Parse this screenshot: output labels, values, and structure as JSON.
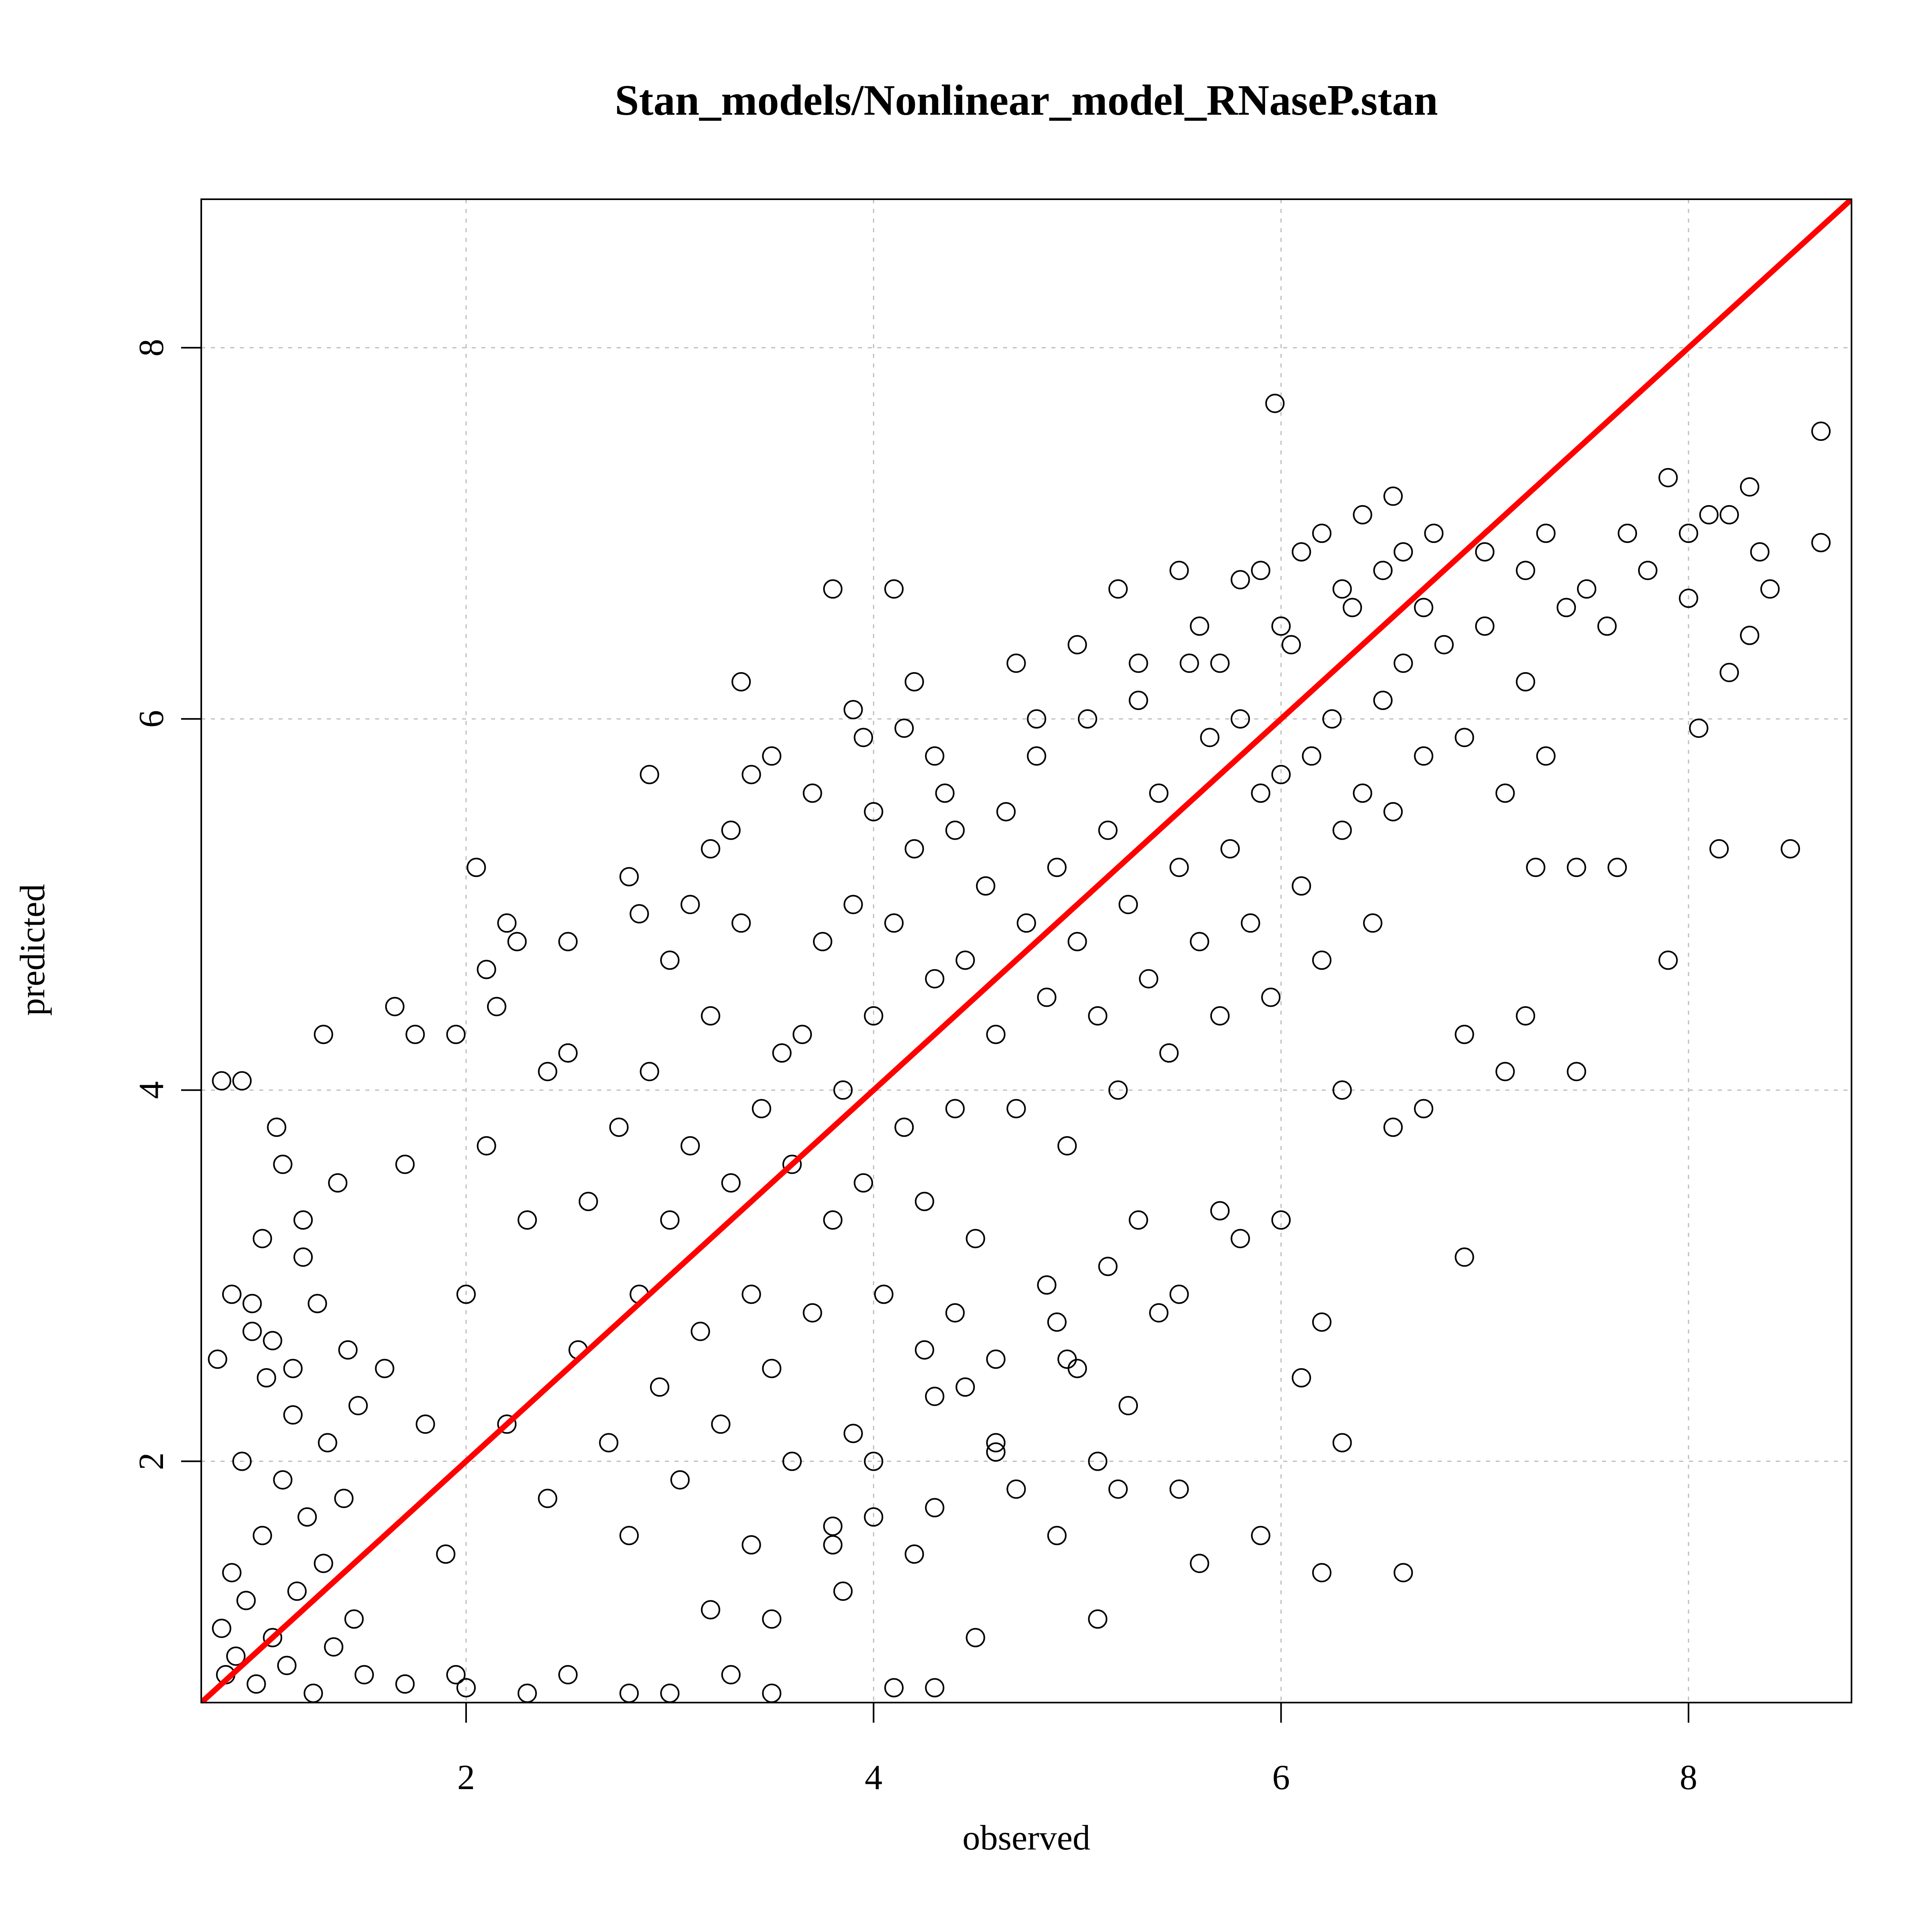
{
  "chart_data": {
    "type": "scatter",
    "title": "Stan_models/Nonlinear_model_RNaseP.stan",
    "xlabel": "observed",
    "ylabel": "predicted",
    "xlim": [
      0.7,
      8.8
    ],
    "ylim": [
      0.7,
      8.8
    ],
    "xticks": [
      2,
      4,
      6,
      8
    ],
    "yticks": [
      2,
      4,
      6,
      8
    ],
    "xtick_labels": [
      "2",
      "4",
      "6",
      "8"
    ],
    "ytick_labels": [
      "2",
      "4",
      "6",
      "8"
    ],
    "grid": true,
    "legend": "none",
    "marker": "open-circle",
    "point_color": "#000000",
    "grid_color": "#bebebe",
    "reference_line": {
      "x": [
        0.7,
        8.8
      ],
      "y": [
        0.7,
        8.8
      ],
      "color": "#ff0000"
    },
    "series": [
      {
        "points": [
          [
            0.78,
            2.55
          ],
          [
            0.8,
            1.1
          ],
          [
            0.82,
            0.85
          ],
          [
            0.85,
            1.4
          ],
          [
            0.87,
            0.95
          ],
          [
            0.9,
            2.0
          ],
          [
            0.92,
            1.25
          ],
          [
            0.95,
            2.7
          ],
          [
            0.97,
            0.8
          ],
          [
            1.0,
            1.6
          ],
          [
            1.02,
            2.45
          ],
          [
            1.05,
            1.05
          ],
          [
            1.07,
            3.8
          ],
          [
            1.1,
            1.9
          ],
          [
            1.12,
            0.9
          ],
          [
            1.15,
            2.25
          ],
          [
            1.17,
            1.3
          ],
          [
            1.2,
            3.1
          ],
          [
            1.22,
            1.7
          ],
          [
            1.25,
            0.75
          ],
          [
            1.27,
            2.85
          ],
          [
            1.3,
            1.45
          ],
          [
            1.32,
            2.1
          ],
          [
            1.35,
            1.0
          ],
          [
            1.37,
            3.5
          ],
          [
            1.4,
            1.8
          ],
          [
            1.42,
            2.6
          ],
          [
            1.45,
            1.15
          ],
          [
            1.47,
            2.3
          ],
          [
            1.5,
            0.85
          ],
          [
            0.8,
            4.05
          ],
          [
            0.9,
            4.05
          ],
          [
            1.1,
            3.6
          ],
          [
            1.3,
            4.3
          ],
          [
            1.2,
            3.3
          ],
          [
            1.0,
            3.2
          ],
          [
            0.85,
            2.9
          ],
          [
            0.95,
            2.85
          ],
          [
            1.05,
            2.65
          ],
          [
            1.15,
            2.5
          ],
          [
            1.6,
            2.5
          ],
          [
            1.7,
            3.6
          ],
          [
            1.8,
            2.2
          ],
          [
            1.9,
            1.5
          ],
          [
            2.0,
            2.9
          ],
          [
            2.1,
            3.7
          ],
          [
            2.2,
            2.2
          ],
          [
            2.3,
            3.3
          ],
          [
            2.4,
            1.8
          ],
          [
            2.5,
            4.2
          ],
          [
            1.65,
            4.45
          ],
          [
            1.75,
            4.3
          ],
          [
            1.95,
            4.3
          ],
          [
            2.05,
            5.2
          ],
          [
            2.2,
            4.9
          ],
          [
            2.25,
            4.8
          ],
          [
            2.1,
            4.65
          ],
          [
            2.15,
            4.45
          ],
          [
            2.4,
            4.1
          ],
          [
            2.5,
            4.8
          ],
          [
            2.55,
            2.6
          ],
          [
            2.6,
            3.4
          ],
          [
            2.7,
            2.1
          ],
          [
            2.75,
            3.8
          ],
          [
            2.8,
            1.6
          ],
          [
            2.85,
            2.9
          ],
          [
            2.9,
            4.1
          ],
          [
            2.95,
            2.4
          ],
          [
            3.0,
            3.3
          ],
          [
            3.05,
            1.9
          ],
          [
            3.1,
            3.7
          ],
          [
            3.15,
            2.7
          ],
          [
            3.2,
            4.4
          ],
          [
            3.25,
            2.2
          ],
          [
            3.3,
            3.5
          ],
          [
            3.35,
            4.9
          ],
          [
            3.4,
            2.9
          ],
          [
            3.45,
            3.9
          ],
          [
            3.5,
            2.5
          ],
          [
            3.55,
            4.2
          ],
          [
            2.8,
            5.15
          ],
          [
            2.9,
            5.7
          ],
          [
            3.2,
            5.3
          ],
          [
            3.35,
            6.2
          ],
          [
            3.4,
            5.7
          ],
          [
            3.5,
            5.8
          ],
          [
            3.3,
            5.4
          ],
          [
            3.1,
            5.0
          ],
          [
            3.0,
            4.7
          ],
          [
            2.85,
            4.95
          ],
          [
            3.6,
            3.6
          ],
          [
            3.65,
            4.3
          ],
          [
            3.7,
            2.8
          ],
          [
            3.75,
            4.8
          ],
          [
            3.8,
            3.3
          ],
          [
            3.85,
            4.0
          ],
          [
            3.9,
            5.0
          ],
          [
            3.95,
            3.5
          ],
          [
            4.0,
            4.4
          ],
          [
            4.05,
            2.9
          ],
          [
            4.1,
            4.9
          ],
          [
            4.15,
            3.8
          ],
          [
            4.2,
            5.3
          ],
          [
            4.25,
            3.4
          ],
          [
            4.3,
            4.6
          ],
          [
            4.35,
            5.6
          ],
          [
            4.4,
            3.9
          ],
          [
            4.45,
            4.7
          ],
          [
            4.5,
            3.2
          ],
          [
            4.55,
            5.1
          ],
          [
            3.7,
            5.6
          ],
          [
            3.8,
            6.7
          ],
          [
            3.9,
            6.05
          ],
          [
            4.1,
            6.7
          ],
          [
            4.15,
            5.95
          ],
          [
            4.2,
            6.2
          ],
          [
            4.0,
            5.5
          ],
          [
            3.95,
            5.9
          ],
          [
            4.3,
            5.8
          ],
          [
            4.4,
            5.4
          ],
          [
            4.6,
            4.3
          ],
          [
            4.65,
            5.5
          ],
          [
            4.7,
            3.9
          ],
          [
            4.75,
            4.9
          ],
          [
            4.8,
            5.8
          ],
          [
            4.85,
            4.5
          ],
          [
            4.9,
            5.2
          ],
          [
            4.95,
            3.7
          ],
          [
            5.0,
            4.8
          ],
          [
            5.05,
            6.0
          ],
          [
            5.1,
            4.4
          ],
          [
            5.15,
            5.4
          ],
          [
            5.2,
            4.0
          ],
          [
            5.25,
            5.0
          ],
          [
            5.3,
            6.1
          ],
          [
            5.35,
            4.6
          ],
          [
            5.4,
            5.6
          ],
          [
            5.45,
            4.2
          ],
          [
            5.5,
            5.2
          ],
          [
            5.55,
            6.3
          ],
          [
            4.7,
            6.3
          ],
          [
            4.8,
            6.0
          ],
          [
            5.0,
            6.4
          ],
          [
            5.2,
            6.7
          ],
          [
            5.3,
            6.3
          ],
          [
            5.5,
            6.8
          ],
          [
            5.6,
            6.5
          ],
          [
            5.7,
            6.3
          ],
          [
            5.8,
            6.75
          ],
          [
            5.9,
            6.8
          ],
          [
            5.6,
            4.8
          ],
          [
            5.65,
            5.9
          ],
          [
            5.7,
            4.4
          ],
          [
            5.75,
            5.3
          ],
          [
            5.8,
            6.0
          ],
          [
            5.85,
            4.9
          ],
          [
            5.9,
            5.6
          ],
          [
            5.95,
            4.5
          ],
          [
            6.0,
            5.7
          ],
          [
            6.05,
            6.4
          ],
          [
            6.1,
            5.1
          ],
          [
            6.15,
            5.8
          ],
          [
            6.2,
            4.7
          ],
          [
            6.25,
            6.0
          ],
          [
            6.3,
            5.4
          ],
          [
            6.35,
            6.6
          ],
          [
            6.4,
            5.6
          ],
          [
            6.45,
            4.9
          ],
          [
            6.5,
            6.1
          ],
          [
            6.55,
            5.5
          ],
          [
            6.0,
            6.5
          ],
          [
            6.1,
            6.9
          ],
          [
            6.2,
            7.0
          ],
          [
            6.3,
            6.7
          ],
          [
            6.4,
            7.1
          ],
          [
            6.5,
            6.8
          ],
          [
            6.55,
            7.2
          ],
          [
            6.6,
            6.9
          ],
          [
            6.7,
            6.6
          ],
          [
            6.75,
            7.0
          ],
          [
            5.97,
            7.7
          ],
          [
            6.6,
            6.3
          ],
          [
            6.7,
            5.8
          ],
          [
            6.8,
            6.4
          ],
          [
            6.9,
            5.9
          ],
          [
            7.0,
            6.5
          ],
          [
            7.1,
            5.6
          ],
          [
            7.2,
            6.2
          ],
          [
            7.3,
            5.8
          ],
          [
            7.4,
            6.6
          ],
          [
            7.0,
            6.9
          ],
          [
            7.2,
            6.8
          ],
          [
            7.3,
            7.0
          ],
          [
            7.5,
            6.7
          ],
          [
            7.6,
            6.5
          ],
          [
            7.7,
            7.0
          ],
          [
            7.8,
            6.8
          ],
          [
            7.9,
            7.3
          ],
          [
            8.0,
            7.0
          ],
          [
            8.1,
            7.1
          ],
          [
            8.2,
            7.1
          ],
          [
            8.3,
            7.25
          ],
          [
            8.35,
            6.9
          ],
          [
            8.3,
            6.45
          ],
          [
            8.2,
            6.25
          ],
          [
            8.0,
            6.65
          ],
          [
            8.05,
            5.95
          ],
          [
            8.4,
            6.7
          ],
          [
            8.65,
            7.55
          ],
          [
            8.65,
            6.95
          ],
          [
            8.15,
            5.3
          ],
          [
            8.5,
            5.3
          ],
          [
            7.9,
            4.7
          ],
          [
            7.65,
            5.2
          ],
          [
            7.45,
            5.2
          ],
          [
            7.25,
            5.2
          ],
          [
            7.45,
            4.1
          ],
          [
            7.1,
            4.1
          ],
          [
            7.2,
            4.4
          ],
          [
            6.9,
            4.3
          ],
          [
            6.2,
            1.4
          ],
          [
            6.6,
            1.4
          ],
          [
            6.3,
            2.1
          ],
          [
            6.2,
            2.75
          ],
          [
            6.1,
            2.45
          ],
          [
            5.6,
            1.45
          ],
          [
            5.9,
            1.6
          ],
          [
            5.5,
            1.85
          ],
          [
            5.25,
            2.3
          ],
          [
            5.1,
            2.0
          ],
          [
            5.1,
            1.15
          ],
          [
            5.2,
            1.85
          ],
          [
            4.5,
            1.05
          ],
          [
            4.9,
            1.6
          ],
          [
            4.7,
            1.85
          ],
          [
            4.6,
            2.05
          ],
          [
            4.6,
            2.1
          ],
          [
            4.2,
            1.5
          ],
          [
            4.1,
            0.78
          ],
          [
            4.3,
            0.78
          ],
          [
            3.5,
            0.75
          ],
          [
            3.5,
            1.15
          ],
          [
            3.3,
            0.85
          ],
          [
            3.0,
            0.75
          ],
          [
            2.8,
            0.75
          ],
          [
            2.5,
            0.85
          ],
          [
            2.3,
            0.75
          ],
          [
            2.0,
            0.78
          ],
          [
            1.95,
            0.85
          ],
          [
            1.7,
            0.8
          ],
          [
            4.0,
            1.7
          ],
          [
            4.3,
            1.75
          ],
          [
            3.8,
            1.65
          ],
          [
            3.8,
            1.55
          ],
          [
            3.85,
            1.3
          ],
          [
            3.9,
            2.15
          ],
          [
            4.0,
            2.0
          ],
          [
            3.6,
            2.0
          ],
          [
            3.4,
            1.55
          ],
          [
            3.2,
            1.2
          ],
          [
            6.9,
            3.1
          ],
          [
            6.7,
            3.9
          ],
          [
            6.55,
            3.8
          ],
          [
            6.3,
            4.0
          ],
          [
            6.0,
            3.3
          ],
          [
            5.7,
            3.35
          ],
          [
            5.8,
            3.2
          ],
          [
            5.5,
            2.9
          ],
          [
            5.4,
            2.8
          ],
          [
            5.3,
            3.3
          ],
          [
            5.0,
            2.5
          ],
          [
            4.95,
            2.55
          ],
          [
            5.15,
            3.05
          ],
          [
            4.9,
            2.75
          ],
          [
            4.85,
            2.95
          ],
          [
            4.6,
            2.55
          ],
          [
            4.45,
            2.4
          ],
          [
            4.4,
            2.8
          ],
          [
            4.3,
            2.35
          ],
          [
            4.25,
            2.6
          ]
        ]
      }
    ]
  }
}
